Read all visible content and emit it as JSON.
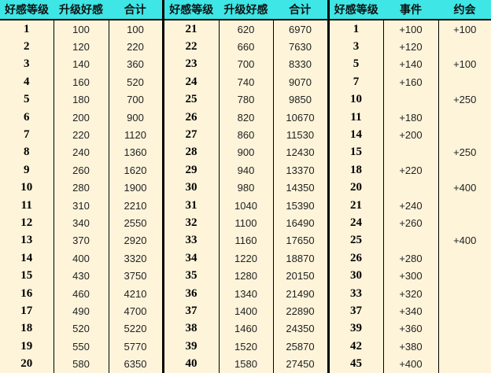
{
  "colors": {
    "header_bg": "#3ee6e6",
    "body_bg": "#fdf4da"
  },
  "headers": [
    "好感等级",
    "升级好感",
    "合计",
    "好感等级",
    "升级好感",
    "合计",
    "好感等级",
    "事件",
    "约会"
  ],
  "rows": [
    [
      "1",
      "100",
      "100",
      "21",
      "620",
      "6970",
      "1",
      "+100",
      "+100"
    ],
    [
      "2",
      "120",
      "220",
      "22",
      "660",
      "7630",
      "3",
      "+120",
      ""
    ],
    [
      "3",
      "140",
      "360",
      "23",
      "700",
      "8330",
      "5",
      "+140",
      "+100"
    ],
    [
      "4",
      "160",
      "520",
      "24",
      "740",
      "9070",
      "7",
      "+160",
      ""
    ],
    [
      "5",
      "180",
      "700",
      "25",
      "780",
      "9850",
      "10",
      "",
      "+250"
    ],
    [
      "6",
      "200",
      "900",
      "26",
      "820",
      "10670",
      "11",
      "+180",
      ""
    ],
    [
      "7",
      "220",
      "1120",
      "27",
      "860",
      "11530",
      "14",
      "+200",
      ""
    ],
    [
      "8",
      "240",
      "1360",
      "28",
      "900",
      "12430",
      "15",
      "",
      "+250"
    ],
    [
      "9",
      "260",
      "1620",
      "29",
      "940",
      "13370",
      "18",
      "+220",
      ""
    ],
    [
      "10",
      "280",
      "1900",
      "30",
      "980",
      "14350",
      "20",
      "",
      "+400"
    ],
    [
      "11",
      "310",
      "2210",
      "31",
      "1040",
      "15390",
      "21",
      "+240",
      ""
    ],
    [
      "12",
      "340",
      "2550",
      "32",
      "1100",
      "16490",
      "24",
      "+260",
      ""
    ],
    [
      "13",
      "370",
      "2920",
      "33",
      "1160",
      "17650",
      "25",
      "",
      "+400"
    ],
    [
      "14",
      "400",
      "3320",
      "34",
      "1220",
      "18870",
      "26",
      "+280",
      ""
    ],
    [
      "15",
      "430",
      "3750",
      "35",
      "1280",
      "20150",
      "30",
      "+300",
      ""
    ],
    [
      "16",
      "460",
      "4210",
      "36",
      "1340",
      "21490",
      "33",
      "+320",
      ""
    ],
    [
      "17",
      "490",
      "4700",
      "37",
      "1400",
      "22890",
      "37",
      "+340",
      ""
    ],
    [
      "18",
      "520",
      "5220",
      "38",
      "1460",
      "24350",
      "39",
      "+360",
      ""
    ],
    [
      "19",
      "550",
      "5770",
      "39",
      "1520",
      "25870",
      "42",
      "+380",
      ""
    ],
    [
      "20",
      "580",
      "6350",
      "40",
      "1580",
      "27450",
      "45",
      "+400",
      ""
    ]
  ]
}
